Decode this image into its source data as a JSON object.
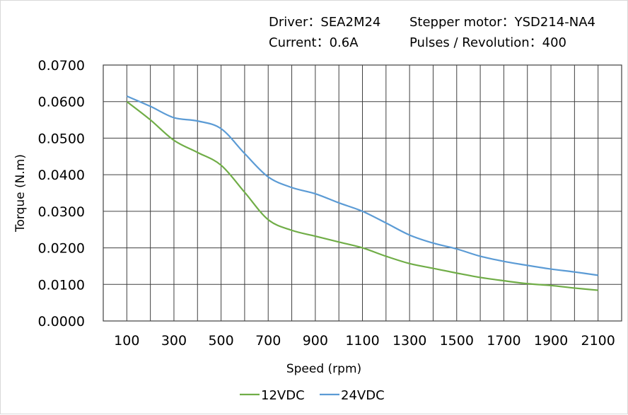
{
  "header": {
    "driver": "Driver：SEA2M24",
    "motor": "Stepper  motor：YSD214-NA4",
    "current": "Current：0.6A",
    "pulses": "Pulses / Revolution：400"
  },
  "chart_data": {
    "type": "line",
    "title": "",
    "xlabel": "Speed  (rpm)",
    "ylabel": "Torque (N.m)",
    "xlim": [
      0,
      2200
    ],
    "ylim": [
      0,
      0.07
    ],
    "x_ticks": [
      100,
      300,
      500,
      700,
      900,
      1100,
      1300,
      1500,
      1700,
      1900,
      2100
    ],
    "y_ticks": [
      "0.0000",
      "0.0100",
      "0.0200",
      "0.0300",
      "0.0400",
      "0.0500",
      "0.0600",
      "0.0700"
    ],
    "grid": true,
    "legend_position": "bottom",
    "x": [
      100,
      200,
      300,
      400,
      500,
      600,
      700,
      800,
      900,
      1000,
      1100,
      1200,
      1300,
      1400,
      1500,
      1600,
      1700,
      1800,
      1900,
      2000,
      2100
    ],
    "series": [
      {
        "name": "12VDC",
        "color": "#70ad47",
        "values": [
          0.06,
          0.055,
          0.0494,
          0.0461,
          0.0426,
          0.0352,
          0.0277,
          0.0248,
          0.0232,
          0.0216,
          0.02,
          0.0177,
          0.0157,
          0.0144,
          0.0131,
          0.0119,
          0.011,
          0.0102,
          0.0097,
          0.009,
          0.0084
        ]
      },
      {
        "name": "24VDC",
        "color": "#5b9bd5",
        "values": [
          0.0615,
          0.0587,
          0.0556,
          0.0547,
          0.0526,
          0.0458,
          0.0394,
          0.0365,
          0.0348,
          0.0323,
          0.03,
          0.0268,
          0.0235,
          0.0213,
          0.0197,
          0.0177,
          0.0163,
          0.0152,
          0.0142,
          0.0134,
          0.0125
        ]
      }
    ]
  }
}
